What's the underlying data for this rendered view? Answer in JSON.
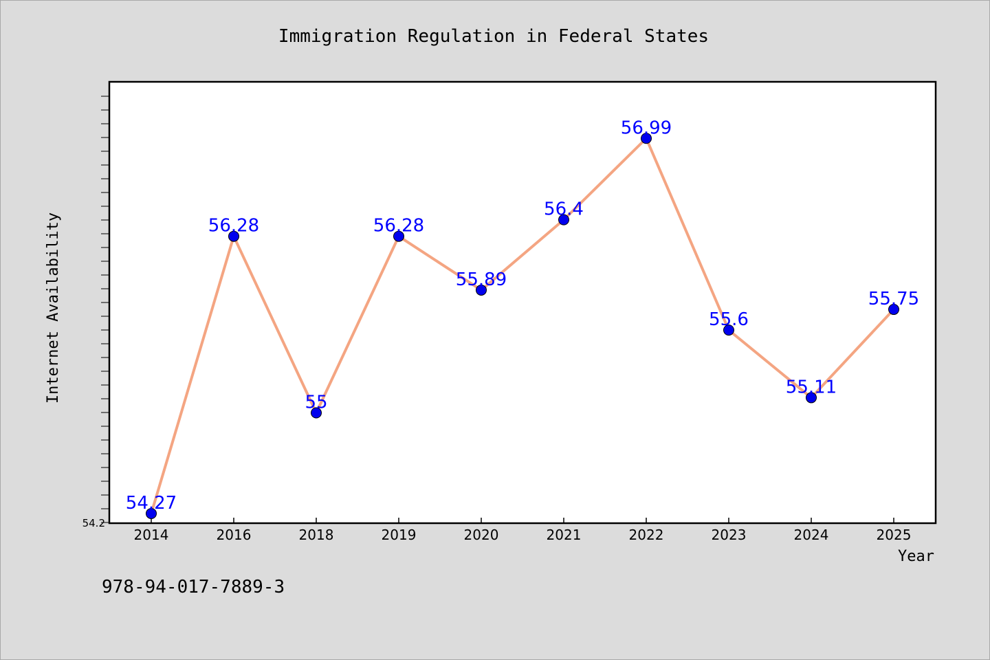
{
  "chart_data": {
    "type": "line",
    "title": "Immigration Regulation in Federal States",
    "xlabel": "Year",
    "ylabel": "Internet Availability",
    "categories": [
      "2014",
      "2016",
      "2018",
      "2019",
      "2020",
      "2021",
      "2022",
      "2023",
      "2024",
      "2025"
    ],
    "series": [
      {
        "values": [
          54.27,
          56.28,
          55,
          56.28,
          55.89,
          56.4,
          56.99,
          55.6,
          55.11,
          55.75
        ],
        "data_labels": [
          "54.27",
          "56.28",
          "55",
          "56.28",
          "55.89",
          "56.4",
          "56.99",
          "55.6",
          "55.11",
          "55.75"
        ]
      }
    ],
    "ylim": [
      54.2,
      57.4
    ],
    "yticks_labeled": [
      "54.2"
    ],
    "grid": false,
    "line_color": "#f4a582",
    "marker_color": "#0000ee",
    "label_color": "#0000ff"
  },
  "footer": {
    "code": "978-94-017-7889-3"
  }
}
